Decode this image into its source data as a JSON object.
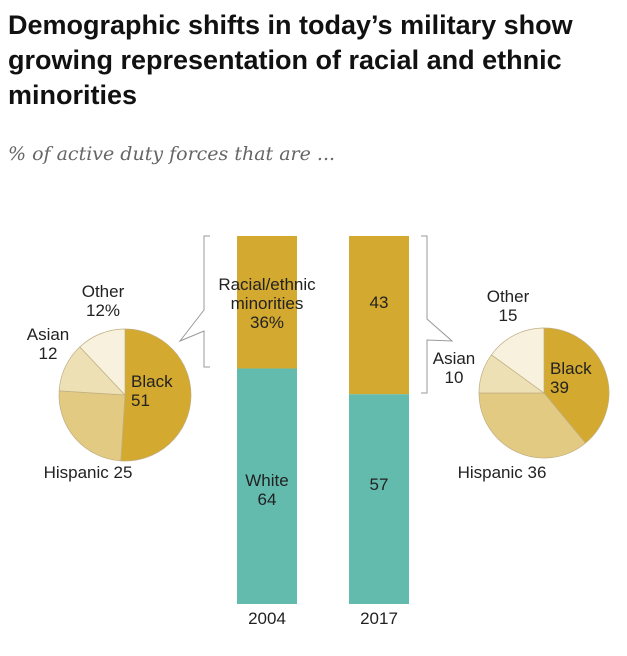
{
  "title": "Demographic shifts in today’s military show growing representation of racial and ethnic minorities",
  "subtitle": "% of active duty forces that are ...",
  "colors": {
    "white": "#63bbae",
    "minority": "#d4a92f",
    "black": "#d4a92f",
    "hispanic": "#e3ca82",
    "asian": "#ede0b5",
    "other": "#f8f1de"
  },
  "chart_data": [
    {
      "type": "bar",
      "stacked": true,
      "categories": [
        "2004",
        "2017"
      ],
      "series": [
        {
          "name": "White",
          "values": [
            64,
            57
          ]
        },
        {
          "name": "Racial/ethnic minorities",
          "values": [
            36,
            43
          ]
        }
      ],
      "labels": {
        "white_2004": "White\n64",
        "white_2017": "57",
        "min_2004": "Racial/ethnic\nminorities\n36%",
        "min_2017": "43"
      }
    },
    {
      "type": "pie",
      "year": "2004",
      "slices": [
        {
          "name": "Black",
          "value": 51,
          "label": "Black\n51"
        },
        {
          "name": "Hispanic",
          "value": 25,
          "label": "Hispanic 25"
        },
        {
          "name": "Asian",
          "value": 12,
          "label": "Asian\n12"
        },
        {
          "name": "Other",
          "value": 12,
          "label": "Other\n12%"
        }
      ]
    },
    {
      "type": "pie",
      "year": "2017",
      "slices": [
        {
          "name": "Black",
          "value": 39,
          "label": "Black\n39"
        },
        {
          "name": "Hispanic",
          "value": 36,
          "label": "Hispanic 36"
        },
        {
          "name": "Asian",
          "value": 10,
          "label": "Asian\n10"
        },
        {
          "name": "Other",
          "value": 15,
          "label": "Other\n15"
        }
      ]
    }
  ]
}
